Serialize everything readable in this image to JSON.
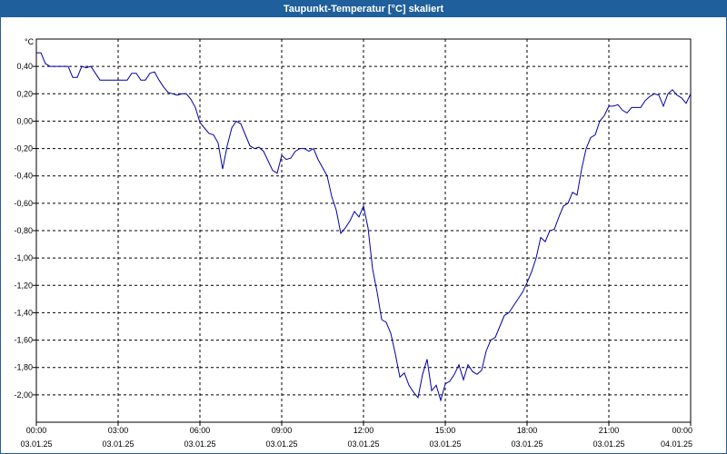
{
  "window": {
    "title": "Taupunkt-Temperatur [°C] skaliert"
  },
  "colors": {
    "titlebar": "#1f5f9b",
    "series": "#0000aa",
    "grid": "#000000"
  },
  "chart_data": {
    "type": "line",
    "title": "Taupunkt-Temperatur [°C] skaliert",
    "ylabel": "°C",
    "xlabel": "",
    "grid": true,
    "xlim": [
      "2025-01-03T00:00",
      "2025-01-04T00:00"
    ],
    "ylim": [
      -2.2,
      0.6
    ],
    "y_ticks": [
      {
        "value": 0.4,
        "label": "0,40"
      },
      {
        "value": 0.2,
        "label": "0,20"
      },
      {
        "value": 0.0,
        "label": "0,00"
      },
      {
        "value": -0.2,
        "label": "-0,20"
      },
      {
        "value": -0.4,
        "label": "-0,40"
      },
      {
        "value": -0.6,
        "label": "-0,60"
      },
      {
        "value": -0.8,
        "label": "-0,80"
      },
      {
        "value": -1.0,
        "label": "-1,00"
      },
      {
        "value": -1.2,
        "label": "-1,20"
      },
      {
        "value": -1.4,
        "label": "-1,40"
      },
      {
        "value": -1.6,
        "label": "-1,60"
      },
      {
        "value": -1.8,
        "label": "-1,80"
      },
      {
        "value": -2.0,
        "label": "-2,00"
      }
    ],
    "x_ticks": [
      {
        "time": "00:00",
        "date": "03.01.25"
      },
      {
        "time": "03:00",
        "date": "03.01.25"
      },
      {
        "time": "06:00",
        "date": "03.01.25"
      },
      {
        "time": "09:00",
        "date": "03.01.25"
      },
      {
        "time": "12:00",
        "date": "03.01.25"
      },
      {
        "time": "15:00",
        "date": "03.01.25"
      },
      {
        "time": "18:00",
        "date": "03.01.25"
      },
      {
        "time": "21:00",
        "date": "03.01.25"
      },
      {
        "time": "00:00",
        "date": "04.01.25"
      }
    ],
    "series": [
      {
        "points": [
          {
            "x": "00:00",
            "y": 0.5
          },
          {
            "x": "00:10",
            "y": 0.5
          },
          {
            "x": "00:20",
            "y": 0.42
          },
          {
            "x": "00:30",
            "y": 0.4
          },
          {
            "x": "00:40",
            "y": 0.4
          },
          {
            "x": "00:50",
            "y": 0.4
          },
          {
            "x": "01:00",
            "y": 0.4
          },
          {
            "x": "01:10",
            "y": 0.4
          },
          {
            "x": "01:20",
            "y": 0.32
          },
          {
            "x": "01:30",
            "y": 0.32
          },
          {
            "x": "01:40",
            "y": 0.4
          },
          {
            "x": "01:50",
            "y": 0.39
          },
          {
            "x": "02:00",
            "y": 0.4
          },
          {
            "x": "02:10",
            "y": 0.35
          },
          {
            "x": "02:20",
            "y": 0.3
          },
          {
            "x": "02:30",
            "y": 0.3
          },
          {
            "x": "02:40",
            "y": 0.3
          },
          {
            "x": "02:50",
            "y": 0.3
          },
          {
            "x": "03:00",
            "y": 0.3
          },
          {
            "x": "03:10",
            "y": 0.3
          },
          {
            "x": "03:20",
            "y": 0.3
          },
          {
            "x": "03:30",
            "y": 0.35
          },
          {
            "x": "03:40",
            "y": 0.35
          },
          {
            "x": "03:50",
            "y": 0.3
          },
          {
            "x": "04:00",
            "y": 0.3
          },
          {
            "x": "04:10",
            "y": 0.35
          },
          {
            "x": "04:20",
            "y": 0.36
          },
          {
            "x": "04:30",
            "y": 0.3
          },
          {
            "x": "04:40",
            "y": 0.25
          },
          {
            "x": "04:50",
            "y": 0.21
          },
          {
            "x": "05:00",
            "y": 0.2
          },
          {
            "x": "05:10",
            "y": 0.19
          },
          {
            "x": "05:20",
            "y": 0.2
          },
          {
            "x": "05:30",
            "y": 0.2
          },
          {
            "x": "05:40",
            "y": 0.16
          },
          {
            "x": "05:50",
            "y": 0.1
          },
          {
            "x": "06:00",
            "y": -0.01
          },
          {
            "x": "06:10",
            "y": -0.05
          },
          {
            "x": "06:20",
            "y": -0.09
          },
          {
            "x": "06:30",
            "y": -0.1
          },
          {
            "x": "06:40",
            "y": -0.16
          },
          {
            "x": "06:50",
            "y": -0.35
          },
          {
            "x": "07:00",
            "y": -0.18
          },
          {
            "x": "07:10",
            "y": -0.05
          },
          {
            "x": "07:20",
            "y": 0.0
          },
          {
            "x": "07:30",
            "y": -0.02
          },
          {
            "x": "07:40",
            "y": -0.1
          },
          {
            "x": "07:50",
            "y": -0.18
          },
          {
            "x": "08:00",
            "y": -0.2
          },
          {
            "x": "08:10",
            "y": -0.19
          },
          {
            "x": "08:20",
            "y": -0.22
          },
          {
            "x": "08:30",
            "y": -0.29
          },
          {
            "x": "08:40",
            "y": -0.36
          },
          {
            "x": "08:50",
            "y": -0.38
          },
          {
            "x": "09:00",
            "y": -0.25
          },
          {
            "x": "09:10",
            "y": -0.28
          },
          {
            "x": "09:20",
            "y": -0.27
          },
          {
            "x": "09:30",
            "y": -0.22
          },
          {
            "x": "09:40",
            "y": -0.2
          },
          {
            "x": "09:50",
            "y": -0.2
          },
          {
            "x": "10:00",
            "y": -0.22
          },
          {
            "x": "10:10",
            "y": -0.2
          },
          {
            "x": "10:20",
            "y": -0.28
          },
          {
            "x": "10:30",
            "y": -0.34
          },
          {
            "x": "10:40",
            "y": -0.4
          },
          {
            "x": "10:50",
            "y": -0.55
          },
          {
            "x": "11:00",
            "y": -0.65
          },
          {
            "x": "11:10",
            "y": -0.82
          },
          {
            "x": "11:20",
            "y": -0.78
          },
          {
            "x": "11:30",
            "y": -0.73
          },
          {
            "x": "11:40",
            "y": -0.66
          },
          {
            "x": "11:50",
            "y": -0.7
          },
          {
            "x": "12:00",
            "y": -0.62
          },
          {
            "x": "12:10",
            "y": -0.78
          },
          {
            "x": "12:20",
            "y": -1.08
          },
          {
            "x": "12:30",
            "y": -1.25
          },
          {
            "x": "12:40",
            "y": -1.45
          },
          {
            "x": "12:50",
            "y": -1.47
          },
          {
            "x": "13:00",
            "y": -1.55
          },
          {
            "x": "13:10",
            "y": -1.7
          },
          {
            "x": "13:20",
            "y": -1.87
          },
          {
            "x": "13:30",
            "y": -1.84
          },
          {
            "x": "13:40",
            "y": -1.93
          },
          {
            "x": "13:50",
            "y": -1.98
          },
          {
            "x": "14:00",
            "y": -2.02
          },
          {
            "x": "14:10",
            "y": -1.85
          },
          {
            "x": "14:20",
            "y": -1.74
          },
          {
            "x": "14:30",
            "y": -1.97
          },
          {
            "x": "14:40",
            "y": -1.93
          },
          {
            "x": "14:50",
            "y": -2.04
          },
          {
            "x": "15:00",
            "y": -1.92
          },
          {
            "x": "15:10",
            "y": -1.9
          },
          {
            "x": "15:20",
            "y": -1.85
          },
          {
            "x": "15:30",
            "y": -1.78
          },
          {
            "x": "15:40",
            "y": -1.89
          },
          {
            "x": "15:50",
            "y": -1.78
          },
          {
            "x": "16:00",
            "y": -1.83
          },
          {
            "x": "16:10",
            "y": -1.85
          },
          {
            "x": "16:20",
            "y": -1.82
          },
          {
            "x": "16:30",
            "y": -1.68
          },
          {
            "x": "16:40",
            "y": -1.6
          },
          {
            "x": "16:50",
            "y": -1.58
          },
          {
            "x": "17:00",
            "y": -1.5
          },
          {
            "x": "17:10",
            "y": -1.42
          },
          {
            "x": "17:20",
            "y": -1.4
          },
          {
            "x": "17:30",
            "y": -1.35
          },
          {
            "x": "17:40",
            "y": -1.3
          },
          {
            "x": "17:50",
            "y": -1.25
          },
          {
            "x": "18:00",
            "y": -1.18
          },
          {
            "x": "18:10",
            "y": -1.1
          },
          {
            "x": "18:20",
            "y": -1.0
          },
          {
            "x": "18:30",
            "y": -0.85
          },
          {
            "x": "18:40",
            "y": -0.88
          },
          {
            "x": "18:50",
            "y": -0.8
          },
          {
            "x": "19:00",
            "y": -0.79
          },
          {
            "x": "19:10",
            "y": -0.7
          },
          {
            "x": "19:20",
            "y": -0.62
          },
          {
            "x": "19:30",
            "y": -0.6
          },
          {
            "x": "19:40",
            "y": -0.52
          },
          {
            "x": "19:50",
            "y": -0.54
          },
          {
            "x": "20:00",
            "y": -0.35
          },
          {
            "x": "20:10",
            "y": -0.2
          },
          {
            "x": "20:20",
            "y": -0.12
          },
          {
            "x": "20:30",
            "y": -0.1
          },
          {
            "x": "20:40",
            "y": 0.0
          },
          {
            "x": "20:50",
            "y": 0.04
          },
          {
            "x": "21:00",
            "y": 0.11
          },
          {
            "x": "21:10",
            "y": 0.11
          },
          {
            "x": "21:20",
            "y": 0.12
          },
          {
            "x": "21:30",
            "y": 0.08
          },
          {
            "x": "21:40",
            "y": 0.06
          },
          {
            "x": "21:50",
            "y": 0.1
          },
          {
            "x": "22:00",
            "y": 0.1
          },
          {
            "x": "22:10",
            "y": 0.1
          },
          {
            "x": "22:20",
            "y": 0.15
          },
          {
            "x": "22:30",
            "y": 0.18
          },
          {
            "x": "22:40",
            "y": 0.2
          },
          {
            "x": "22:50",
            "y": 0.19
          },
          {
            "x": "23:00",
            "y": 0.11
          },
          {
            "x": "23:10",
            "y": 0.2
          },
          {
            "x": "23:20",
            "y": 0.23
          },
          {
            "x": "23:30",
            "y": 0.19
          },
          {
            "x": "23:40",
            "y": 0.17
          },
          {
            "x": "23:50",
            "y": 0.13
          },
          {
            "x": "24:00",
            "y": 0.2
          }
        ]
      }
    ]
  }
}
